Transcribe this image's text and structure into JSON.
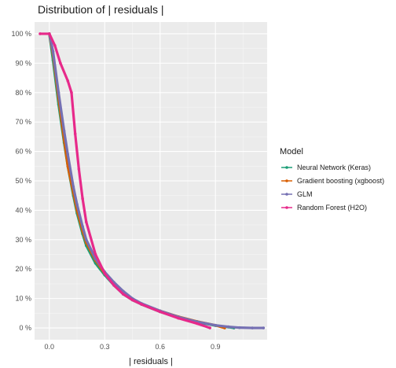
{
  "chart_data": {
    "type": "line",
    "title": "Distribution of | residuals |",
    "xlabel": "| residuals |",
    "ylabel": "",
    "xlim": [
      -0.08,
      1.18
    ],
    "ylim": [
      -0.04,
      1.04
    ],
    "x_ticks": [
      0.0,
      0.3,
      0.6,
      0.9
    ],
    "x_tick_labels": [
      "0.0",
      "0.3",
      "0.6",
      "0.9"
    ],
    "y_ticks": [
      0,
      0.1,
      0.2,
      0.3,
      0.4,
      0.5,
      0.6,
      0.7,
      0.8,
      0.9,
      1.0
    ],
    "y_tick_labels": [
      "0 %",
      "10 %",
      "20 %",
      "30 %",
      "40 %",
      "50 %",
      "60 %",
      "70 %",
      "80 %",
      "90 %",
      "100 %"
    ],
    "grid": true,
    "legend": {
      "title": "Model",
      "position": "right"
    },
    "series": [
      {
        "name": "Neural Network (Keras)",
        "color": "#1b9e77",
        "x": [
          0.0,
          0.02,
          0.05,
          0.08,
          0.1,
          0.13,
          0.15,
          0.18,
          0.2,
          0.25,
          0.3,
          0.35,
          0.4,
          0.45,
          0.5,
          0.6,
          0.7,
          0.8,
          0.9,
          0.97,
          1.0
        ],
        "y": [
          1.0,
          0.91,
          0.76,
          0.63,
          0.55,
          0.45,
          0.39,
          0.32,
          0.28,
          0.22,
          0.18,
          0.145,
          0.115,
          0.095,
          0.08,
          0.055,
          0.035,
          0.02,
          0.008,
          0.003,
          0.0
        ]
      },
      {
        "name": "Gradient boosting (xgboost)",
        "color": "#d95f02",
        "x": [
          0.0,
          0.02,
          0.05,
          0.08,
          0.1,
          0.13,
          0.15,
          0.18,
          0.2,
          0.25,
          0.3,
          0.35,
          0.4,
          0.45,
          0.5,
          0.6,
          0.7,
          0.8,
          0.9,
          0.95
        ],
        "y": [
          1.0,
          0.93,
          0.78,
          0.64,
          0.55,
          0.46,
          0.4,
          0.33,
          0.29,
          0.23,
          0.185,
          0.15,
          0.12,
          0.098,
          0.082,
          0.058,
          0.038,
          0.022,
          0.009,
          0.0
        ]
      },
      {
        "name": "GLM",
        "color": "#7570b3",
        "x": [
          0.0,
          0.02,
          0.05,
          0.08,
          0.1,
          0.13,
          0.15,
          0.18,
          0.2,
          0.25,
          0.3,
          0.35,
          0.4,
          0.45,
          0.5,
          0.6,
          0.7,
          0.8,
          0.9,
          0.97,
          1.03,
          1.1,
          1.16
        ],
        "y": [
          1.0,
          0.94,
          0.8,
          0.67,
          0.59,
          0.48,
          0.42,
          0.345,
          0.3,
          0.235,
          0.19,
          0.155,
          0.125,
          0.1,
          0.083,
          0.058,
          0.037,
          0.021,
          0.009,
          0.004,
          0.001,
          0.0,
          0.0
        ]
      },
      {
        "name": "Random Forest (H2O)",
        "color": "#e7298a",
        "x": [
          -0.05,
          0.0,
          0.03,
          0.06,
          0.1,
          0.12,
          0.14,
          0.16,
          0.18,
          0.2,
          0.25,
          0.3,
          0.35,
          0.4,
          0.45,
          0.5,
          0.6,
          0.7,
          0.8,
          0.87
        ],
        "y": [
          1.0,
          1.0,
          0.96,
          0.9,
          0.84,
          0.8,
          0.66,
          0.54,
          0.44,
          0.36,
          0.25,
          0.185,
          0.145,
          0.115,
          0.095,
          0.08,
          0.055,
          0.033,
          0.015,
          0.0
        ]
      }
    ]
  }
}
